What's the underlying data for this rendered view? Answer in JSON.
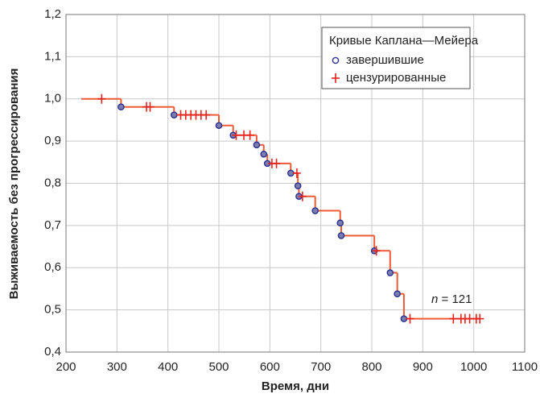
{
  "chart_data": {
    "type": "kaplan-meier",
    "xlabel": "Время, дни",
    "ylabel": "Выживаемость без прогрессирования",
    "legend_title": "Кривые Каплана—Мейера",
    "annotation": {
      "italic": "n",
      "text": "= 121"
    },
    "xlim": [
      200,
      1100
    ],
    "xticks": [
      200,
      300,
      400,
      500,
      600,
      700,
      800,
      900,
      1000,
      1100
    ],
    "ylim": [
      0.4,
      1.2
    ],
    "yticks": [
      {
        "value": 0.4,
        "label": "0,4"
      },
      {
        "value": 0.5,
        "label": "0,5"
      },
      {
        "value": 0.6,
        "label": "0,6"
      },
      {
        "value": 0.7,
        "label": "0,7"
      },
      {
        "value": 0.8,
        "label": "0,8"
      },
      {
        "value": 0.9,
        "label": "0,9"
      },
      {
        "value": 1.0,
        "label": "1,0"
      },
      {
        "value": 1.1,
        "label": "1,1"
      },
      {
        "value": 1.2,
        "label": "1,2"
      }
    ],
    "grid": true,
    "step_curve": {
      "color": "#ef5a36",
      "x": [
        230,
        308,
        412,
        500,
        528,
        574,
        588,
        595,
        641,
        655,
        657,
        689,
        738,
        740,
        805,
        836,
        850,
        863
      ],
      "values": [
        1.0,
        0.981,
        0.962,
        0.937,
        0.914,
        0.891,
        0.869,
        0.847,
        0.824,
        0.794,
        0.769,
        0.735,
        0.706,
        0.676,
        0.64,
        0.588,
        0.538,
        0.479
      ]
    },
    "series": [
      {
        "name": "завершившие",
        "color": "#2b2f8f",
        "marker": "circle",
        "x": [
          308,
          412,
          500,
          528,
          574,
          588,
          595,
          641,
          655,
          657,
          689,
          738,
          740,
          805,
          836,
          850,
          863
        ],
        "values": [
          0.981,
          0.962,
          0.937,
          0.914,
          0.891,
          0.869,
          0.847,
          0.824,
          0.794,
          0.769,
          0.735,
          0.706,
          0.676,
          0.64,
          0.588,
          0.538,
          0.479
        ]
      },
      {
        "name": "цензурированные",
        "color": "#e8231d",
        "marker": "cross",
        "x": [
          270,
          358,
          365,
          425,
          435,
          445,
          455,
          465,
          475,
          534,
          549,
          561,
          604,
          613,
          653,
          664,
          809,
          875,
          960,
          975,
          983,
          992,
          1005,
          1012
        ],
        "values": [
          1.0,
          0.981,
          0.981,
          0.962,
          0.962,
          0.962,
          0.962,
          0.962,
          0.962,
          0.914,
          0.914,
          0.914,
          0.847,
          0.847,
          0.824,
          0.769,
          0.64,
          0.479,
          0.479,
          0.479,
          0.479,
          0.479,
          0.479,
          0.479
        ]
      }
    ]
  }
}
